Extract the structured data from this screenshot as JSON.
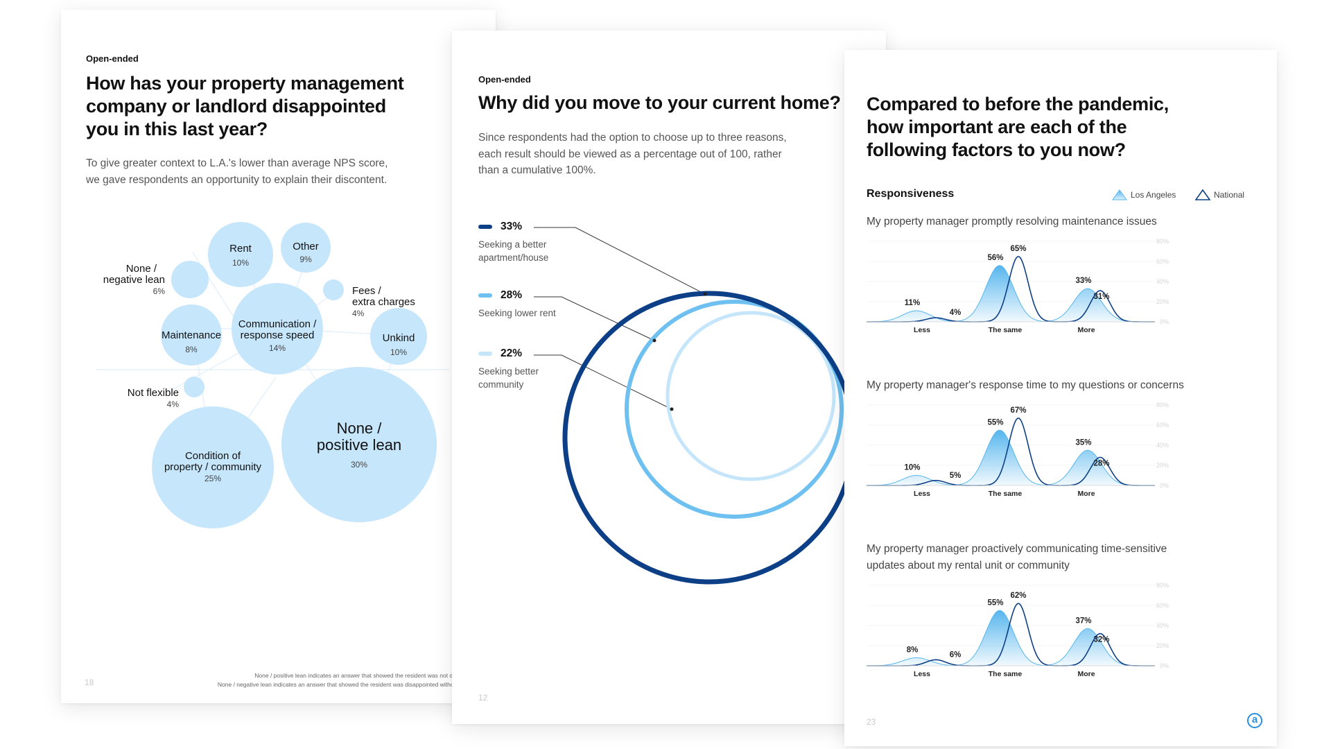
{
  "page1": {
    "kicker": "Open-ended",
    "title_lines": [
      "How has your property management",
      "company or landlord disappointed",
      "you in this last year?"
    ],
    "intro_lines": [
      "To give greater context to L.A.'s lower than average NPS score,",
      "we gave respondents an opportunity to explain their discontent."
    ],
    "page_number": "18",
    "footnotes": [
      "None / positive lean indicates an answer that showed the resident was not disappointed.",
      "None / negative lean indicates an answer that showed the resident was disappointed without specifics."
    ],
    "bubble_color": "#c6e6fb",
    "bubbles": [
      {
        "label": "None / positive lean",
        "label_lines": [
          "None /",
          "positive lean"
        ],
        "value": "30%"
      },
      {
        "label": "Condition of property / community",
        "label_lines": [
          "Condition of",
          "property / community"
        ],
        "value": "25%"
      },
      {
        "label": "Communication / response speed",
        "label_lines": [
          "Communication /",
          "response speed"
        ],
        "value": "14%"
      },
      {
        "label": "Rent",
        "label_lines": [
          "Rent"
        ],
        "value": "10%"
      },
      {
        "label": "Unkind",
        "label_lines": [
          "Unkind"
        ],
        "value": "10%"
      },
      {
        "label": "Other",
        "label_lines": [
          "Other"
        ],
        "value": "9%"
      },
      {
        "label": "Maintenance",
        "label_lines": [
          "Maintenance"
        ],
        "value": "8%"
      },
      {
        "label": "None / negative lean",
        "label_lines": [
          "None /",
          "negative lean"
        ],
        "value": "6%"
      },
      {
        "label": "Fees / extra charges",
        "label_lines": [
          "Fees /",
          "extra charges"
        ],
        "value": "4%"
      },
      {
        "label": "Not flexible",
        "label_lines": [
          "Not flexible"
        ],
        "value": "4%"
      }
    ]
  },
  "page2": {
    "kicker": "Open-ended",
    "title": "Why did you move to your current home?",
    "intro_lines": [
      "Since respondents had the option to choose up to three reasons,",
      "each result should be viewed as a percentage out of 100, rather",
      "than a cumulative 100%."
    ],
    "page_number": "12",
    "legend": [
      {
        "value": "33%",
        "label_lines": [
          "Seeking a better",
          "apartment/house"
        ],
        "color": "#0d3f86"
      },
      {
        "value": "28%",
        "label_lines": [
          "Seeking lower rent"
        ],
        "color": "#6ec0f0"
      },
      {
        "value": "22%",
        "label_lines": [
          "Seeking better",
          "community"
        ],
        "color": "#c5e5fa"
      }
    ]
  },
  "page3": {
    "title_lines": [
      "Compared to before the pandemic,",
      "how important are each of the",
      "following factors to you now?"
    ],
    "section": "Responsiveness",
    "legend": [
      {
        "label": "Los Angeles",
        "color": "#57b6ee"
      },
      {
        "label": "National",
        "color": "#0d3f86"
      }
    ],
    "page_number": "23",
    "logo_glyph": "a",
    "chart_data": [
      {
        "type": "area",
        "title_lines": [
          "My property manager promptly resolving maintenance issues"
        ],
        "categories": [
          "Less",
          "The same",
          "More"
        ],
        "series": [
          {
            "name": "Los Angeles",
            "values": [
              11,
              56,
              33
            ]
          },
          {
            "name": "National",
            "values": [
              4,
              65,
              31
            ]
          }
        ],
        "value_labels": {
          "Los Angeles": [
            "11%",
            "56%",
            "33%"
          ],
          "National": [
            "4%",
            "65%",
            "31%"
          ]
        },
        "y_ticks": [
          "80%",
          "60%",
          "40%",
          "20%",
          "0%"
        ],
        "ylim": [
          0,
          80
        ]
      },
      {
        "type": "area",
        "title_lines": [
          "My property manager's response time to my questions or concerns"
        ],
        "categories": [
          "Less",
          "The same",
          "More"
        ],
        "series": [
          {
            "name": "Los Angeles",
            "values": [
              10,
              55,
              35
            ]
          },
          {
            "name": "National",
            "values": [
              5,
              67,
              28
            ]
          }
        ],
        "value_labels": {
          "Los Angeles": [
            "10%",
            "55%",
            "35%"
          ],
          "National": [
            "5%",
            "67%",
            "28%"
          ]
        },
        "y_ticks": [
          "80%",
          "60%",
          "40%",
          "20%",
          "0%"
        ],
        "ylim": [
          0,
          80
        ]
      },
      {
        "type": "area",
        "title_lines": [
          "My property manager proactively communicating time-sensitive",
          "updates about my rental unit or community"
        ],
        "categories": [
          "Less",
          "The same",
          "More"
        ],
        "series": [
          {
            "name": "Los Angeles",
            "values": [
              8,
              55,
              37
            ]
          },
          {
            "name": "National",
            "values": [
              6,
              62,
              32
            ]
          }
        ],
        "value_labels": {
          "Los Angeles": [
            "8%",
            "55%",
            "37%"
          ],
          "National": [
            "6%",
            "62%",
            "32%"
          ]
        },
        "y_ticks": [
          "80%",
          "60%",
          "40%",
          "20%",
          "0%"
        ],
        "ylim": [
          0,
          80
        ]
      }
    ]
  }
}
